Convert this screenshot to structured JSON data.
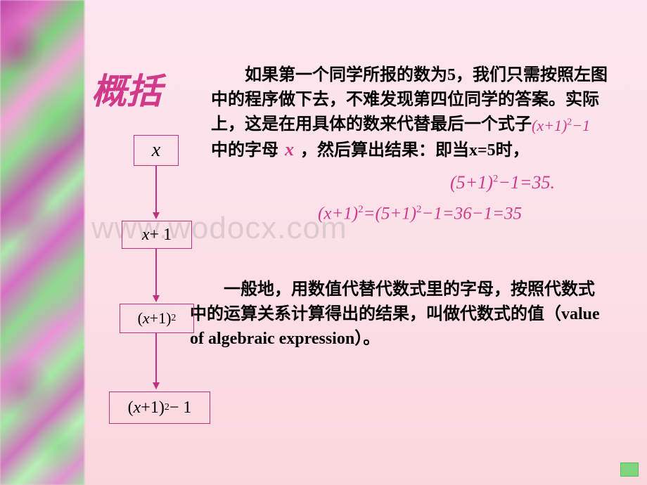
{
  "title": "概括",
  "para1_a": "如果第一个同学所报的数为5，我们只需按照左图中的程序做下去，不难发现第四位同学的答案。实际上，这是在用具体的数来代替最后一个式子",
  "formula_inline1_a": "(",
  "formula_inline1_b": "x",
  "formula_inline1_c": "+1)",
  "formula_inline1_d": "2",
  "formula_inline1_e": "−1",
  "para1_b": "中的字母",
  "inline_x": "x",
  "para1_c": "，然后算出结果：即当x=5时，",
  "formula2_a": "(",
  "formula2_b": "5+1",
  "formula2_c": ")",
  "formula2_d": "2",
  "formula2_e": "−1=35.",
  "formula3_a": "(",
  "formula3_b": "x",
  "formula3_c": "+1)",
  "formula3_d": "2",
  "formula3_e": "=(5+1)",
  "formula3_f": "2",
  "formula3_g": "−1=36−1=35",
  "para2": "一般地，用数值代替代数式里的字母，按照代数式中的运算关系计算得出的结果，叫做代数式的值（value of algebraic expression）。",
  "box1": "x",
  "box2_a": "x",
  "box2_b": " + 1",
  "box3_a": "(",
  "box3_b": "x",
  "box3_c": " +1)",
  "box3_d": "2",
  "box4_a": "(",
  "box4_b": "x",
  "box4_c": " +1)",
  "box4_d": "2",
  "box4_e": " − 1",
  "watermark": "www.wodocx.com",
  "colors": {
    "accent": "#d13a8a",
    "box_border": "#c03080",
    "bg_top": "#fde6ef",
    "bg_bottom": "#fad7dd",
    "corner": "#7fd67f"
  }
}
